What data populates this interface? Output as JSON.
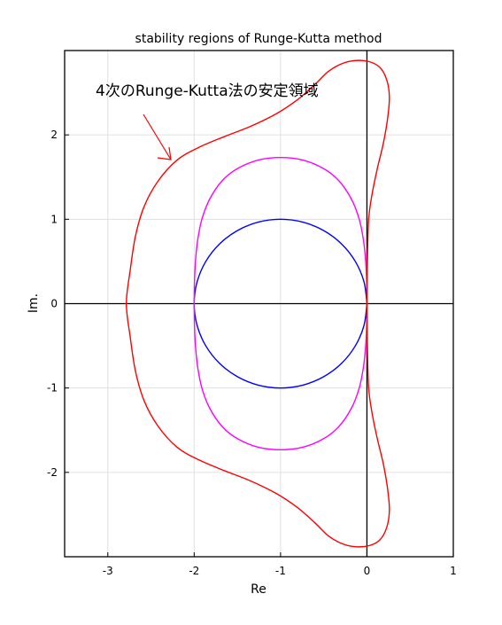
{
  "chart_data": {
    "type": "line",
    "title": "stability regions of Runge-Kutta method",
    "xlabel": "Re",
    "ylabel": "Im.",
    "xlim": [
      -3.5,
      1
    ],
    "ylim": [
      -3,
      3
    ],
    "grid": true,
    "xticks": [
      -3,
      -2,
      -1,
      0,
      1
    ],
    "yticks": [
      -2,
      -1,
      0,
      1,
      2
    ],
    "series": [
      {
        "order": 1,
        "color": "#0000ff",
        "points": [
          [
            0.0,
            0.0
          ],
          [
            -0.0341,
            0.2588
          ],
          [
            -0.134,
            0.5
          ],
          [
            -0.2929,
            0.7071
          ],
          [
            -0.5,
            0.866
          ],
          [
            -0.7412,
            0.9659
          ],
          [
            -1.0,
            1.0
          ],
          [
            -1.2588,
            0.9659
          ],
          [
            -1.5,
            0.866
          ],
          [
            -1.7071,
            0.7071
          ],
          [
            -1.866,
            0.5
          ],
          [
            -1.9659,
            0.2588
          ],
          [
            -2.0,
            0.0
          ],
          [
            -1.9659,
            -0.2588
          ],
          [
            -1.866,
            -0.5
          ],
          [
            -1.7071,
            -0.7071
          ],
          [
            -1.5,
            -0.866
          ],
          [
            -1.2588,
            -0.9659
          ],
          [
            -1.0,
            -1.0
          ],
          [
            -0.7412,
            -0.9659
          ],
          [
            -0.5,
            -0.866
          ],
          [
            -0.2929,
            -0.7071
          ],
          [
            -0.134,
            -0.5
          ],
          [
            -0.0341,
            -0.2588
          ],
          [
            0.0,
            0.0
          ]
        ]
      },
      {
        "order": 2,
        "color": "#ff00ff",
        "points": [
          [
            0.0,
            0.0
          ],
          [
            -0.0034,
            0.26
          ],
          [
            -0.0146,
            0.5
          ],
          [
            -0.04,
            0.75
          ],
          [
            -0.089,
            1.0
          ],
          [
            -0.18,
            1.24
          ],
          [
            -0.3244,
            1.4568
          ],
          [
            -0.5,
            1.6
          ],
          [
            -0.7412,
            1.7021
          ],
          [
            -1.0,
            1.7321
          ],
          [
            -1.2588,
            1.7021
          ],
          [
            -1.5,
            1.6
          ],
          [
            -1.6756,
            1.4568
          ],
          [
            -1.82,
            1.24
          ],
          [
            -1.911,
            1.0
          ],
          [
            -1.96,
            0.75
          ],
          [
            -1.9854,
            0.5
          ],
          [
            -1.9966,
            0.26
          ],
          [
            -2.0,
            0.0
          ],
          [
            -1.9966,
            -0.26
          ],
          [
            -1.9854,
            -0.5
          ],
          [
            -1.96,
            -0.75
          ],
          [
            -1.911,
            -1.0
          ],
          [
            -1.82,
            -1.24
          ],
          [
            -1.6756,
            -1.4568
          ],
          [
            -1.5,
            -1.6
          ],
          [
            -1.2588,
            -1.7021
          ],
          [
            -1.0,
            -1.7321
          ],
          [
            -0.7412,
            -1.7021
          ],
          [
            -0.5,
            -1.6
          ],
          [
            -0.3244,
            -1.4568
          ],
          [
            -0.18,
            -1.24
          ],
          [
            -0.089,
            -1.0
          ],
          [
            -0.04,
            -0.75
          ],
          [
            -0.0146,
            -0.5
          ],
          [
            -0.0034,
            -0.26
          ],
          [
            0.0,
            0.0
          ]
        ]
      },
      {
        "order": 4,
        "color": "#ff0000",
        "points": [
          [
            0.0,
            0.0
          ],
          [
            0.005,
            0.5
          ],
          [
            0.02,
            1.0
          ],
          [
            0.06,
            1.3
          ],
          [
            0.12,
            1.6
          ],
          [
            0.19,
            1.9
          ],
          [
            0.24,
            2.2
          ],
          [
            0.26,
            2.45
          ],
          [
            0.23,
            2.65
          ],
          [
            0.15,
            2.8
          ],
          [
            0.02,
            2.87
          ],
          [
            -0.15,
            2.88
          ],
          [
            -0.3,
            2.84
          ],
          [
            -0.45,
            2.75
          ],
          [
            -0.6,
            2.6
          ],
          [
            -0.8,
            2.42
          ],
          [
            -1.05,
            2.25
          ],
          [
            -1.35,
            2.1
          ],
          [
            -1.65,
            1.98
          ],
          [
            -1.95,
            1.85
          ],
          [
            -2.2,
            1.7
          ],
          [
            -2.42,
            1.45
          ],
          [
            -2.58,
            1.15
          ],
          [
            -2.68,
            0.8
          ],
          [
            -2.74,
            0.4
          ],
          [
            -2.7853,
            0.0
          ],
          [
            -2.74,
            -0.4
          ],
          [
            -2.68,
            -0.8
          ],
          [
            -2.58,
            -1.15
          ],
          [
            -2.42,
            -1.45
          ],
          [
            -2.2,
            -1.7
          ],
          [
            -1.95,
            -1.85
          ],
          [
            -1.65,
            -1.98
          ],
          [
            -1.35,
            -2.1
          ],
          [
            -1.05,
            -2.25
          ],
          [
            -0.8,
            -2.42
          ],
          [
            -0.6,
            -2.6
          ],
          [
            -0.45,
            -2.75
          ],
          [
            -0.3,
            -2.84
          ],
          [
            -0.15,
            -2.88
          ],
          [
            0.02,
            -2.87
          ],
          [
            0.15,
            -2.8
          ],
          [
            0.23,
            -2.65
          ],
          [
            0.26,
            -2.45
          ],
          [
            0.24,
            -2.2
          ],
          [
            0.19,
            -1.9
          ],
          [
            0.12,
            -1.6
          ],
          [
            0.06,
            -1.3
          ],
          [
            0.02,
            -1.0
          ],
          [
            0.005,
            -0.5
          ],
          [
            0.0,
            0.0
          ]
        ]
      }
    ],
    "annotations": [
      {
        "text": "4次のRunge-Kutta法の安定領域",
        "color": "#000000",
        "arrow_color": "#ff0000"
      }
    ]
  }
}
